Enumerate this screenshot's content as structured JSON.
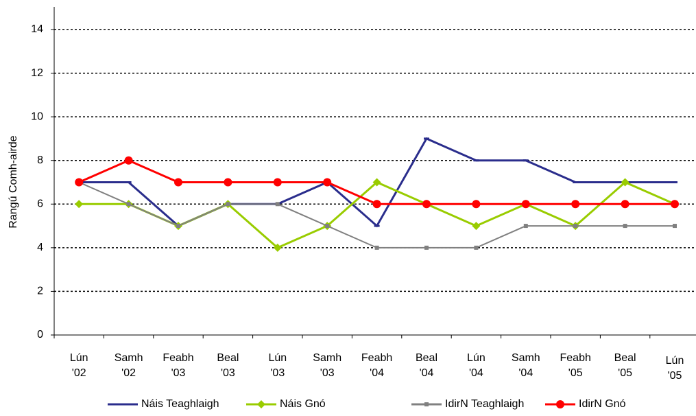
{
  "chart_data": {
    "type": "line",
    "y_label": "Rangú Comh-airde",
    "categories": [
      "Lún '02",
      "Samh '02",
      "Feabh '03",
      "Beal '03",
      "Lún '03",
      "Samh '03",
      "Feabh '04",
      "Beal '04",
      "Lún '04",
      "Samh '04",
      "Feabh '05",
      "Beal '05",
      "Lún '05"
    ],
    "series": [
      {
        "name": "Náis Teaghlaigh",
        "color": "#2a2d8c",
        "marker": "dash",
        "values": [
          7,
          7,
          5,
          6,
          6,
          7,
          5,
          9,
          8,
          8,
          7,
          7,
          7
        ]
      },
      {
        "name": "Náis Gnó",
        "color": "#99cc00",
        "marker": "diamond",
        "values": [
          6,
          6,
          5,
          6,
          4,
          5,
          7,
          6,
          5,
          6,
          5,
          7,
          6
        ]
      },
      {
        "name": "IdirN Teaghlaigh",
        "color": "#808080",
        "marker": "square",
        "values": [
          7,
          6,
          5,
          6,
          6,
          5,
          4,
          4,
          4,
          5,
          5,
          5,
          5
        ]
      },
      {
        "name": "IdirN Gnó",
        "color": "#ff0000",
        "marker": "circle",
        "values": [
          7,
          8,
          7,
          7,
          7,
          7,
          6,
          6,
          6,
          6,
          6,
          6,
          6
        ]
      }
    ],
    "ylim": [
      0,
      14
    ],
    "yticks": [
      0,
      2,
      4,
      6,
      8,
      10,
      12,
      14
    ],
    "grid": true,
    "legend": "bottom"
  }
}
